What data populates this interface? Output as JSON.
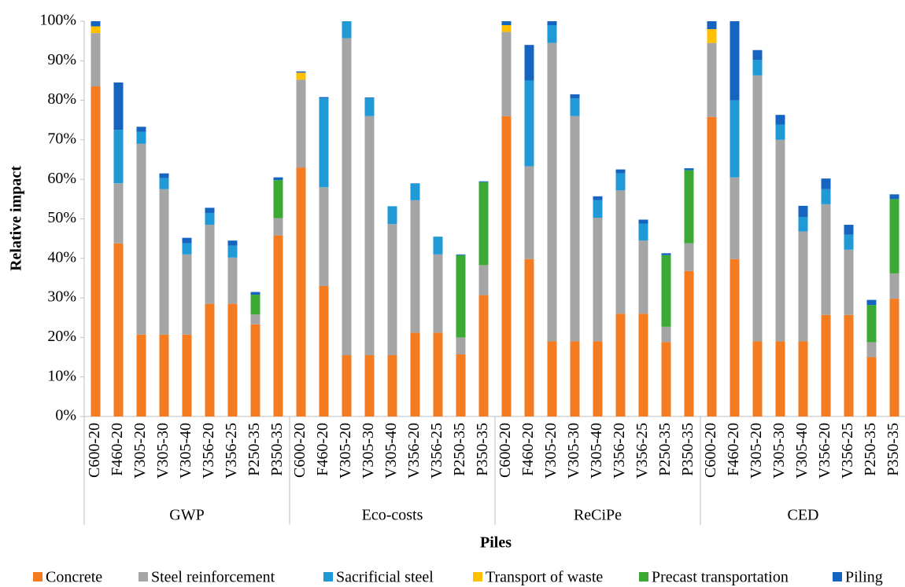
{
  "chart_data": {
    "type": "stacked-bar",
    "y_label": "Relative impact",
    "x_label": "Piles",
    "categories": [
      "C600-20",
      "F460-20",
      "V305-20",
      "V305-30",
      "V305-40",
      "V356-20",
      "V356-25",
      "P250-35",
      "P350-35",
      "C600-20",
      "F460-20",
      "V305-20",
      "V305-30",
      "V305-40",
      "V356-20",
      "V356-25",
      "P250-35",
      "P350-35",
      "C600-20",
      "F460-20",
      "V305-20",
      "V305-30",
      "V305-40",
      "V356-20",
      "V356-25",
      "P250-35",
      "P350-35",
      "C600-20",
      "F460-20",
      "V305-20",
      "V305-30",
      "V305-40",
      "V356-20",
      "V356-25",
      "P250-35",
      "P350-35"
    ],
    "groups": [
      "GWP",
      "Eco-costs",
      "ReCiPe",
      "CED"
    ],
    "ylim": [
      0,
      100
    ],
    "yticks": [
      {
        "value": 0,
        "label": "0%"
      },
      {
        "value": 10,
        "label": "10%"
      },
      {
        "value": 20,
        "label": "20%"
      },
      {
        "value": 30,
        "label": "30%"
      },
      {
        "value": 40,
        "label": "40%"
      },
      {
        "value": 50,
        "label": "50%"
      },
      {
        "value": 60,
        "label": "60%"
      },
      {
        "value": 70,
        "label": "70%"
      },
      {
        "value": 80,
        "label": "80%"
      },
      {
        "value": 90,
        "label": "90%"
      },
      {
        "value": 100,
        "label": "100%"
      }
    ],
    "legend": "bottom",
    "series": [
      {
        "name": "Concrete",
        "color": "#f47b20",
        "values": [
          83.5,
          43.8,
          20.7,
          20.7,
          20.7,
          28.5,
          28.5,
          23.3,
          45.8,
          63,
          33,
          15.5,
          15.5,
          15.5,
          21.2,
          21.2,
          15.7,
          30.7,
          76,
          39.8,
          19,
          19,
          19,
          26,
          26,
          18.8,
          36.8,
          75.8,
          39.8,
          19,
          19,
          19,
          25.7,
          25.7,
          15,
          29.8
        ]
      },
      {
        "name": "Steel reinforcement",
        "color": "#a5a5a5",
        "values": [
          13.5,
          15.2,
          48.3,
          36.8,
          20.3,
          20,
          11.7,
          2.5,
          4.4,
          22.2,
          25,
          80.2,
          60.5,
          33.2,
          33.5,
          19.8,
          4.3,
          7.6,
          21.3,
          23.5,
          75.5,
          57,
          31.3,
          31.2,
          18.5,
          3.9,
          7,
          18.7,
          20.7,
          67.3,
          51,
          27.8,
          28,
          16.5,
          3.8,
          6.4
        ]
      },
      {
        "name": "Sacrificial steel",
        "color": "#1f9ad6",
        "values": [
          0,
          13.5,
          3,
          2.8,
          2.8,
          3,
          3,
          0,
          0,
          0,
          22.5,
          4.3,
          4.5,
          4.5,
          4.3,
          4.5,
          0,
          0,
          0,
          21.7,
          4.5,
          4.5,
          4.4,
          4.3,
          4.3,
          0,
          0,
          0,
          19.5,
          3.9,
          3.8,
          3.7,
          3.8,
          3.8,
          0,
          0
        ]
      },
      {
        "name": "Transport of waste",
        "color": "#ffc000",
        "values": [
          1.7,
          0,
          0,
          0,
          0,
          0,
          0,
          0,
          0,
          1.8,
          0,
          0,
          0,
          0,
          0,
          0,
          0,
          0,
          1.7,
          0,
          0,
          0,
          0,
          0,
          0,
          0,
          0,
          3.5,
          0,
          0,
          0,
          0,
          0,
          0,
          0,
          0
        ]
      },
      {
        "name": "Precast transportation",
        "color": "#3aaa35",
        "values": [
          0,
          0,
          0,
          0,
          0,
          0,
          0,
          5,
          9.6,
          0,
          0,
          0,
          0,
          0,
          0,
          0,
          20.8,
          21,
          0,
          0,
          0,
          0,
          0,
          0,
          0,
          18.1,
          18.5,
          0,
          0,
          0,
          0,
          0,
          0,
          0,
          9.4,
          18.8
        ]
      },
      {
        "name": "Piling",
        "color": "#1565c0",
        "values": [
          1.3,
          12,
          1.3,
          1.2,
          1.4,
          1.3,
          1.3,
          0.7,
          0.7,
          0.3,
          0.3,
          0,
          0.2,
          0,
          0,
          0,
          0.2,
          0.2,
          1,
          9,
          1,
          1,
          1,
          1,
          1,
          0.5,
          0.5,
          2,
          20,
          2.5,
          2.5,
          2.8,
          2.7,
          2.5,
          1.3,
          1.2
        ]
      }
    ]
  }
}
